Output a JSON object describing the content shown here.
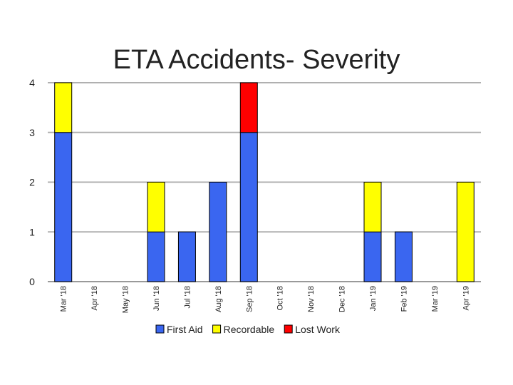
{
  "chart_data": {
    "type": "bar",
    "stacked": true,
    "title": "ETA Accidents- Severity",
    "xlabel": "",
    "ylabel": "",
    "ylim": [
      0,
      4
    ],
    "yticks": [
      "0",
      "1",
      "2",
      "3",
      "4"
    ],
    "grid": true,
    "legend_position": "bottom",
    "categories": [
      "Mar '18",
      "Apr '18",
      "May '18",
      "Jun '18",
      "Jul '18",
      "Aug '18",
      "Sep '18",
      "Oct '18",
      "Nov '18",
      "Dec '18",
      "Jan '19",
      "Feb '19",
      "Mar '19",
      "Apr '19"
    ],
    "series": [
      {
        "name": "First Aid",
        "color": "#3a66f0",
        "values": [
          3,
          0,
          0,
          1,
          1,
          2,
          3,
          0,
          0,
          0,
          1,
          1,
          0,
          0
        ]
      },
      {
        "name": "Recordable",
        "color": "#ffff00",
        "values": [
          1,
          0,
          0,
          1,
          0,
          0,
          0,
          0,
          0,
          0,
          1,
          0,
          0,
          2
        ]
      },
      {
        "name": "Lost Work",
        "color": "#ff0000",
        "values": [
          0,
          0,
          0,
          0,
          0,
          0,
          1,
          0,
          0,
          0,
          0,
          0,
          0,
          0
        ]
      }
    ]
  }
}
